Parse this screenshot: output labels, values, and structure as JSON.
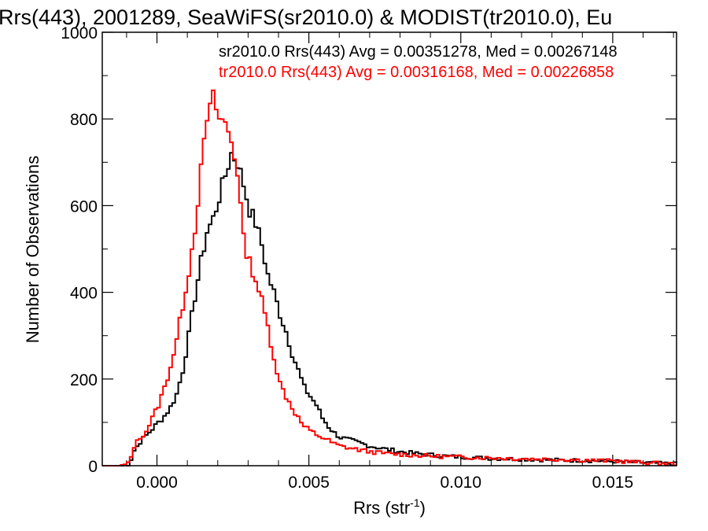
{
  "chart_data": {
    "type": "line",
    "title": "Rrs(443), 2001289, SeaWiFS(sr2010.0) & MODIST(tr2010.0), Eu",
    "xlabel": "Rrs (str",
    "xlabel_sup": "-1",
    "xlabel_close": ")",
    "ylabel": "Number of Observations",
    "xlim": [
      -0.0018,
      0.0171
    ],
    "ylim": [
      0,
      1000
    ],
    "x_ticks": [
      0.0,
      0.005,
      0.01,
      0.015
    ],
    "x_tick_labels": [
      "0.000",
      "0.005",
      "0.010",
      "0.015"
    ],
    "y_ticks": [
      0,
      200,
      400,
      600,
      800,
      1000
    ],
    "y_tick_labels": [
      "0",
      "200",
      "400",
      "600",
      "800",
      "1000"
    ],
    "grid": false,
    "legend_placement": "top-right",
    "series": [
      {
        "name": "sr2010.0 Rrs(443) Avg = 0.00351278, Med = 0.00267148",
        "color": "#000000",
        "points": [
          [
            -0.0018,
            0
          ],
          [
            -0.0012,
            0
          ],
          [
            -0.001,
            2
          ],
          [
            -0.0009,
            15
          ],
          [
            -0.0008,
            35
          ],
          [
            -0.0006,
            55
          ],
          [
            -0.0004,
            70
          ],
          [
            -0.0002,
            85
          ],
          [
            0.0,
            100
          ],
          [
            0.0002,
            115
          ],
          [
            0.0004,
            135
          ],
          [
            0.0006,
            165
          ],
          [
            0.0008,
            220
          ],
          [
            0.001,
            300
          ],
          [
            0.0012,
            390
          ],
          [
            0.0014,
            470
          ],
          [
            0.0016,
            540
          ],
          [
            0.0018,
            570
          ],
          [
            0.002,
            620
          ],
          [
            0.0022,
            670
          ],
          [
            0.0024,
            720
          ],
          [
            0.0026,
            700
          ],
          [
            0.0028,
            650
          ],
          [
            0.003,
            590
          ],
          [
            0.0032,
            560
          ],
          [
            0.0034,
            510
          ],
          [
            0.0036,
            440
          ],
          [
            0.0038,
            400
          ],
          [
            0.004,
            350
          ],
          [
            0.0042,
            310
          ],
          [
            0.0044,
            260
          ],
          [
            0.0046,
            220
          ],
          [
            0.0048,
            180
          ],
          [
            0.005,
            160
          ],
          [
            0.0052,
            140
          ],
          [
            0.0054,
            110
          ],
          [
            0.0056,
            90
          ],
          [
            0.0058,
            75
          ],
          [
            0.006,
            65
          ],
          [
            0.0065,
            55
          ],
          [
            0.007,
            45
          ],
          [
            0.0075,
            38
          ],
          [
            0.008,
            32
          ],
          [
            0.0085,
            28
          ],
          [
            0.009,
            25
          ],
          [
            0.0095,
            22
          ],
          [
            0.01,
            20
          ],
          [
            0.011,
            17
          ],
          [
            0.012,
            15
          ],
          [
            0.013,
            13
          ],
          [
            0.014,
            12
          ],
          [
            0.015,
            10
          ],
          [
            0.016,
            7
          ],
          [
            0.0171,
            4
          ]
        ]
      },
      {
        "name": "tr2010.0 Rrs(443) Avg = 0.00316168, Med = 0.00226858",
        "color": "#ff0000",
        "points": [
          [
            -0.0018,
            0
          ],
          [
            -0.0012,
            0
          ],
          [
            -0.001,
            5
          ],
          [
            -0.0009,
            20
          ],
          [
            -0.0008,
            45
          ],
          [
            -0.0006,
            65
          ],
          [
            -0.0004,
            80
          ],
          [
            -0.0002,
            110
          ],
          [
            0.0,
            140
          ],
          [
            0.0002,
            180
          ],
          [
            0.0004,
            230
          ],
          [
            0.0006,
            290
          ],
          [
            0.0008,
            370
          ],
          [
            0.001,
            450
          ],
          [
            0.0012,
            550
          ],
          [
            0.0014,
            680
          ],
          [
            0.0016,
            800
          ],
          [
            0.0018,
            850
          ],
          [
            0.002,
            800
          ],
          [
            0.0022,
            790
          ],
          [
            0.0024,
            750
          ],
          [
            0.0026,
            680
          ],
          [
            0.0028,
            520
          ],
          [
            0.003,
            470
          ],
          [
            0.0032,
            430
          ],
          [
            0.0034,
            380
          ],
          [
            0.0036,
            320
          ],
          [
            0.0038,
            250
          ],
          [
            0.004,
            190
          ],
          [
            0.0042,
            160
          ],
          [
            0.0044,
            135
          ],
          [
            0.0046,
            110
          ],
          [
            0.0048,
            90
          ],
          [
            0.005,
            80
          ],
          [
            0.0052,
            72
          ],
          [
            0.0054,
            65
          ],
          [
            0.0056,
            58
          ],
          [
            0.0058,
            50
          ],
          [
            0.006,
            45
          ],
          [
            0.0065,
            38
          ],
          [
            0.007,
            32
          ],
          [
            0.0075,
            28
          ],
          [
            0.008,
            26
          ],
          [
            0.0085,
            24
          ],
          [
            0.009,
            22
          ],
          [
            0.0095,
            21
          ],
          [
            0.01,
            20
          ],
          [
            0.011,
            18
          ],
          [
            0.012,
            16
          ],
          [
            0.013,
            15
          ],
          [
            0.014,
            13
          ],
          [
            0.015,
            11
          ],
          [
            0.016,
            7
          ],
          [
            0.0171,
            4
          ]
        ]
      }
    ]
  }
}
